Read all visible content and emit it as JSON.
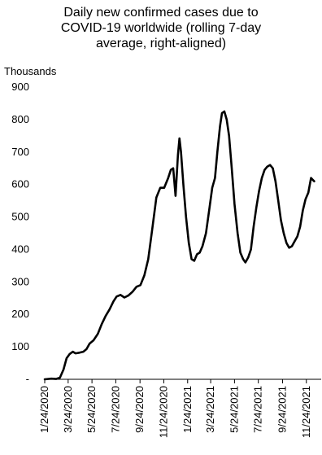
{
  "chart_data": {
    "type": "line",
    "title_lines": [
      "Daily new confirmed cases due to",
      "COVID-19 worldwide (rolling 7-day",
      "average, right-aligned)"
    ],
    "title": "Daily new confirmed cases due to COVID-19 worldwide (rolling 7-day average, right-aligned)",
    "ylabel": "Thousands",
    "xlabel": "",
    "ylim": [
      0,
      900
    ],
    "y_ticks": [
      0,
      100,
      200,
      300,
      400,
      500,
      600,
      700,
      800,
      900
    ],
    "y_tick_labels": [
      "-",
      "100",
      "200",
      "300",
      "400",
      "500",
      "600",
      "700",
      "800",
      "900"
    ],
    "x_range": [
      "2020-01-24",
      "2022-01-01"
    ],
    "x_ticks": [
      "2020-01-24",
      "2020-03-24",
      "2020-05-24",
      "2020-07-24",
      "2020-09-24",
      "2020-11-24",
      "2021-01-24",
      "2021-03-24",
      "2021-05-24",
      "2021-07-24",
      "2021-09-24",
      "2021-11-24"
    ],
    "x_tick_labels": [
      "1/24/2020",
      "3/24/2020",
      "5/24/2020",
      "7/24/2020",
      "9/24/2020",
      "11/24/2020",
      "1/24/2021",
      "3/24/2021",
      "5/24/2021",
      "7/24/2021",
      "9/24/2021",
      "11/24/2021"
    ],
    "grid": false,
    "series": [
      {
        "color": "#000000",
        "points": [
          [
            "2020-01-24",
            0
          ],
          [
            "2020-02-10",
            2
          ],
          [
            "2020-02-22",
            1
          ],
          [
            "2020-03-03",
            5
          ],
          [
            "2020-03-12",
            30
          ],
          [
            "2020-03-20",
            65
          ],
          [
            "2020-03-28",
            78
          ],
          [
            "2020-04-05",
            85
          ],
          [
            "2020-04-12",
            80
          ],
          [
            "2020-04-22",
            82
          ],
          [
            "2020-05-02",
            85
          ],
          [
            "2020-05-10",
            93
          ],
          [
            "2020-05-18",
            110
          ],
          [
            "2020-05-28",
            120
          ],
          [
            "2020-06-08",
            140
          ],
          [
            "2020-06-18",
            170
          ],
          [
            "2020-06-28",
            195
          ],
          [
            "2020-07-08",
            215
          ],
          [
            "2020-07-18",
            240
          ],
          [
            "2020-07-26",
            255
          ],
          [
            "2020-08-05",
            260
          ],
          [
            "2020-08-15",
            252
          ],
          [
            "2020-08-25",
            258
          ],
          [
            "2020-09-05",
            270
          ],
          [
            "2020-09-15",
            285
          ],
          [
            "2020-09-25",
            290
          ],
          [
            "2020-10-05",
            320
          ],
          [
            "2020-10-15",
            370
          ],
          [
            "2020-10-25",
            460
          ],
          [
            "2020-11-05",
            560
          ],
          [
            "2020-11-15",
            590
          ],
          [
            "2020-11-25",
            590
          ],
          [
            "2020-12-05",
            620
          ],
          [
            "2020-12-12",
            645
          ],
          [
            "2020-12-18",
            650
          ],
          [
            "2020-12-24",
            565
          ],
          [
            "2020-12-30",
            690
          ],
          [
            "2021-01-03",
            742
          ],
          [
            "2021-01-07",
            700
          ],
          [
            "2021-01-13",
            600
          ],
          [
            "2021-01-20",
            500
          ],
          [
            "2021-01-27",
            420
          ],
          [
            "2021-02-03",
            370
          ],
          [
            "2021-02-10",
            365
          ],
          [
            "2021-02-17",
            385
          ],
          [
            "2021-02-24",
            390
          ],
          [
            "2021-03-03",
            410
          ],
          [
            "2021-03-12",
            450
          ],
          [
            "2021-03-20",
            520
          ],
          [
            "2021-03-28",
            590
          ],
          [
            "2021-04-04",
            620
          ],
          [
            "2021-04-10",
            700
          ],
          [
            "2021-04-17",
            780
          ],
          [
            "2021-04-22",
            820
          ],
          [
            "2021-04-28",
            825
          ],
          [
            "2021-05-04",
            800
          ],
          [
            "2021-05-10",
            750
          ],
          [
            "2021-05-17",
            650
          ],
          [
            "2021-05-24",
            540
          ],
          [
            "2021-06-01",
            450
          ],
          [
            "2021-06-08",
            390
          ],
          [
            "2021-06-15",
            370
          ],
          [
            "2021-06-21",
            360
          ],
          [
            "2021-06-28",
            375
          ],
          [
            "2021-07-05",
            400
          ],
          [
            "2021-07-12",
            470
          ],
          [
            "2021-07-19",
            530
          ],
          [
            "2021-07-26",
            580
          ],
          [
            "2021-08-02",
            620
          ],
          [
            "2021-08-09",
            645
          ],
          [
            "2021-08-16",
            655
          ],
          [
            "2021-08-23",
            660
          ],
          [
            "2021-08-30",
            650
          ],
          [
            "2021-09-06",
            610
          ],
          [
            "2021-09-13",
            550
          ],
          [
            "2021-09-20",
            490
          ],
          [
            "2021-09-27",
            450
          ],
          [
            "2021-10-04",
            420
          ],
          [
            "2021-10-11",
            405
          ],
          [
            "2021-10-18",
            410
          ],
          [
            "2021-10-25",
            425
          ],
          [
            "2021-11-01",
            440
          ],
          [
            "2021-11-08",
            470
          ],
          [
            "2021-11-15",
            520
          ],
          [
            "2021-11-22",
            555
          ],
          [
            "2021-11-29",
            575
          ],
          [
            "2021-12-06",
            620
          ],
          [
            "2021-12-10",
            615
          ],
          [
            "2021-12-14",
            610
          ]
        ]
      }
    ]
  }
}
